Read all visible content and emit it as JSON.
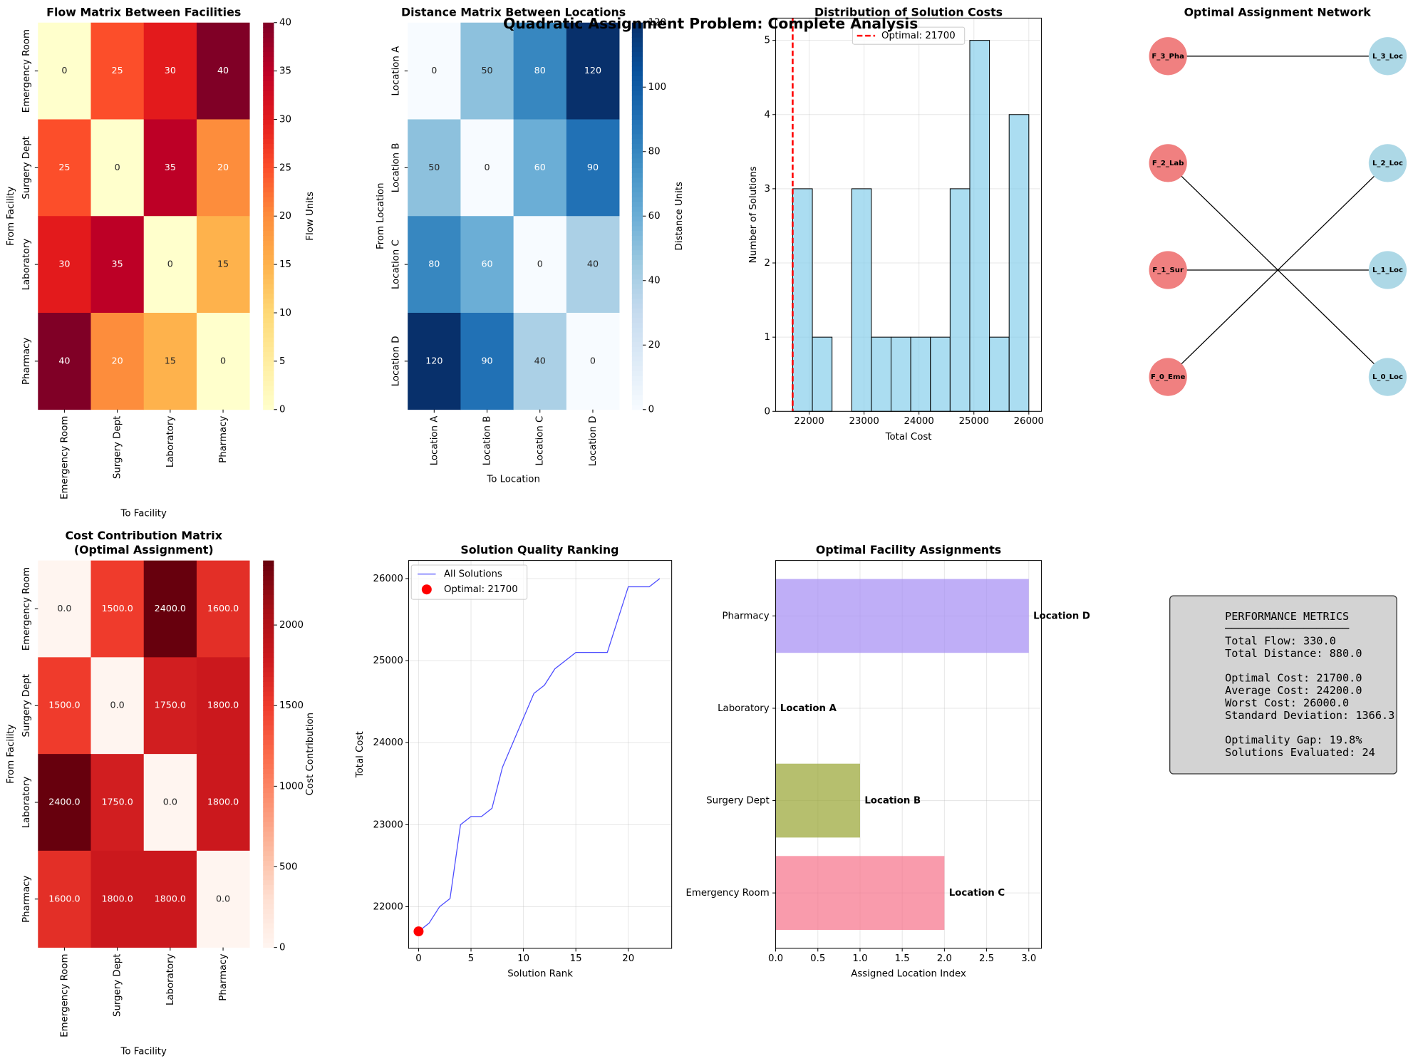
{
  "title": "Quadratic Assignment Problem: Complete Analysis",
  "chart_data": [
    {
      "type": "heatmap",
      "title": [
        "Flow Matrix Between Facilities"
      ],
      "x_categories": [
        "Emergency Room",
        "Surgery Dept",
        "Laboratory",
        "Pharmacy"
      ],
      "y_categories": [
        "Emergency Room",
        "Surgery Dept",
        "Laboratory",
        "Pharmacy"
      ],
      "xlabel": "To Facility",
      "ylabel": "From Facility",
      "values": [
        [
          0,
          25,
          30,
          40
        ],
        [
          25,
          0,
          35,
          20
        ],
        [
          30,
          35,
          0,
          15
        ],
        [
          40,
          20,
          15,
          0
        ]
      ],
      "colormap": "YlOrRd",
      "clim": [
        0,
        40
      ],
      "colorbar_label": "Flow Units",
      "colorbar_ticks": [
        0,
        5,
        10,
        15,
        20,
        25,
        30,
        35,
        40
      ]
    },
    {
      "type": "heatmap",
      "title": [
        "Distance Matrix Between Locations"
      ],
      "x_categories": [
        "Location A",
        "Location B",
        "Location C",
        "Location D"
      ],
      "y_categories": [
        "Location A",
        "Location B",
        "Location C",
        "Location D"
      ],
      "xlabel": "To Location",
      "ylabel": "From Location",
      "values": [
        [
          0,
          50,
          80,
          120
        ],
        [
          50,
          0,
          60,
          90
        ],
        [
          80,
          60,
          0,
          40
        ],
        [
          120,
          90,
          40,
          0
        ]
      ],
      "colormap": "Blues",
      "clim": [
        0,
        120
      ],
      "colorbar_label": "Distance Units",
      "colorbar_ticks": [
        0,
        20,
        40,
        60,
        80,
        100,
        120
      ]
    },
    {
      "type": "histogram",
      "title": [
        "Distribution of Solution Costs"
      ],
      "xlabel": "Total Cost",
      "ylabel": "Number of Solutions",
      "bins": [
        21700,
        22058.3,
        22416.7,
        22775,
        23133.3,
        23491.7,
        23850,
        24208.3,
        24566.7,
        24925,
        25283.3,
        25641.7,
        26000
      ],
      "counts": [
        3,
        1,
        0,
        3,
        1,
        1,
        1,
        1,
        3,
        5,
        1,
        4
      ],
      "color": "#87ceeb",
      "xlim": [
        21390,
        26230
      ],
      "ylim": [
        0,
        5.3
      ],
      "xticks": [
        22000,
        23000,
        24000,
        25000,
        26000
      ],
      "yticks": [
        0,
        1,
        2,
        3,
        4,
        5
      ],
      "grid": true,
      "optimal": 21700,
      "optimal_label": "Optimal: 21700",
      "optimal_color": "#ff0000"
    },
    {
      "type": "network",
      "title": [
        "Optimal Assignment Network"
      ],
      "facility_nodes": [
        "F_0_Eme",
        "F_1_Sur",
        "F_2_Lab",
        "F_3_Pha"
      ],
      "location_nodes": [
        "L_0_Loc",
        "L_1_Loc",
        "L_2_Loc",
        "L_3_Loc"
      ],
      "edges": [
        [
          0,
          2
        ],
        [
          1,
          1
        ],
        [
          2,
          0
        ],
        [
          3,
          3
        ]
      ],
      "facility_color": "#f08080",
      "location_color": "#add8e6"
    },
    {
      "type": "heatmap",
      "title": [
        "Cost Contribution Matrix",
        "(Optimal Assignment)"
      ],
      "x_categories": [
        "Emergency Room",
        "Surgery Dept",
        "Laboratory",
        "Pharmacy"
      ],
      "y_categories": [
        "Emergency Room",
        "Surgery Dept",
        "Laboratory",
        "Pharmacy"
      ],
      "xlabel": "To Facility",
      "ylabel": "From Facility",
      "values": [
        [
          0,
          1500,
          2400,
          1600
        ],
        [
          1500,
          0,
          1750,
          1800
        ],
        [
          2400,
          1750,
          0,
          1800
        ],
        [
          1600,
          1800,
          1800,
          0
        ]
      ],
      "value_labels": [
        [
          "0.0",
          "1500.0",
          "2400.0",
          "1600.0"
        ],
        [
          "1500.0",
          "0.0",
          "1750.0",
          "1800.0"
        ],
        [
          "2400.0",
          "1750.0",
          "0.0",
          "1800.0"
        ],
        [
          "1600.0",
          "1800.0",
          "1800.0",
          "0.0"
        ]
      ],
      "colormap": "Reds",
      "clim": [
        0,
        2400
      ],
      "colorbar_label": "Cost Contribution",
      "colorbar_ticks": [
        0,
        500,
        1000,
        1500,
        2000
      ]
    },
    {
      "type": "line",
      "title": [
        "Solution Quality Ranking"
      ],
      "xlabel": "Solution Rank",
      "ylabel": "Total Cost",
      "x": [
        0,
        1,
        2,
        3,
        4,
        5,
        6,
        7,
        8,
        9,
        10,
        11,
        12,
        13,
        14,
        15,
        16,
        17,
        18,
        19,
        20,
        21,
        22,
        23
      ],
      "series": [
        {
          "name": "All Solutions",
          "color": "#0000ff",
          "values": [
            21700,
            21800,
            22000,
            22100,
            23000,
            23100,
            23100,
            23200,
            23700,
            24000,
            24300,
            24600,
            24700,
            24900,
            25000,
            25100,
            25100,
            25100,
            25100,
            25500,
            25900,
            25900,
            25900,
            26000
          ]
        }
      ],
      "optimal": {
        "x": 0,
        "y": 21700,
        "label": "Optimal: 21700",
        "color": "#ff0000"
      },
      "xlim": [
        -0.95,
        24.14
      ],
      "ylim": [
        21493,
        26220
      ],
      "xticks": [
        0,
        5,
        10,
        15,
        20
      ],
      "yticks": [
        22000,
        23000,
        24000,
        25000,
        26000
      ],
      "grid": true,
      "legend": "upper left"
    },
    {
      "type": "hbar",
      "title": [
        "Optimal Facility Assignments"
      ],
      "xlabel": "Assigned Location Index",
      "categories": [
        "Emergency Room",
        "Surgery Dept",
        "Laboratory",
        "Pharmacy"
      ],
      "values": [
        2,
        1,
        0,
        3
      ],
      "value_labels": [
        "Location C",
        "Location B",
        "Location A",
        "Location D"
      ],
      "colors": [
        "#f77189",
        "#97a431",
        "#36ada4",
        "#a48cf4"
      ],
      "xlim": [
        0,
        3.15
      ],
      "xticks": [
        {
          "value": 0,
          "label": "0.0"
        },
        0.5,
        {
          "value": 1,
          "label": "1.0"
        },
        1.5,
        {
          "value": 2,
          "label": "2.0"
        },
        2.5,
        {
          "value": 3,
          "label": "3.0"
        }
      ],
      "grid": true
    },
    {
      "type": "text",
      "lines": [
        [
          "PERFORMANCE METRICS",
          "───────────────────",
          "Total Flow: 330.0",
          "Total Distance: 880.0"
        ],
        [
          "Optimal Cost: 21700.0",
          "Average Cost: 24200.0",
          "Worst Cost: 26000.0",
          "Standard Deviation: 1366.3"
        ],
        [
          "Optimality Gap: 19.8%",
          "Solutions Evaluated: 24"
        ]
      ]
    }
  ]
}
